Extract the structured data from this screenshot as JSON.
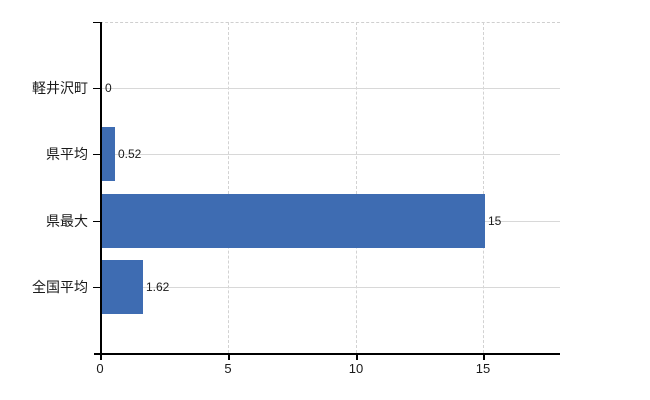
{
  "chart_data": {
    "type": "bar",
    "orientation": "horizontal",
    "title": "",
    "categories": [
      "軽井沢町",
      "県平均",
      "県最大",
      "全国平均"
    ],
    "values": [
      0,
      0.52,
      15,
      1.62
    ],
    "value_labels": [
      "0",
      "0.52",
      "15",
      "1.62"
    ],
    "x_ticks": [
      0,
      5,
      10,
      15
    ],
    "x_tick_labels": [
      "0",
      "5",
      "10",
      "15"
    ],
    "xlim": [
      0,
      18
    ],
    "xlabel": "",
    "ylabel": "",
    "grid": "on",
    "legend": "none",
    "colors": {
      "bar": "#3e6cb2",
      "axis": "#000000",
      "grid_horizontal": "#d8d8d8",
      "grid_vertical": "#d2d2d2",
      "plot_top_border": "#cfcfcf",
      "text": "#1a1a1a",
      "background": "#ffffff"
    }
  }
}
